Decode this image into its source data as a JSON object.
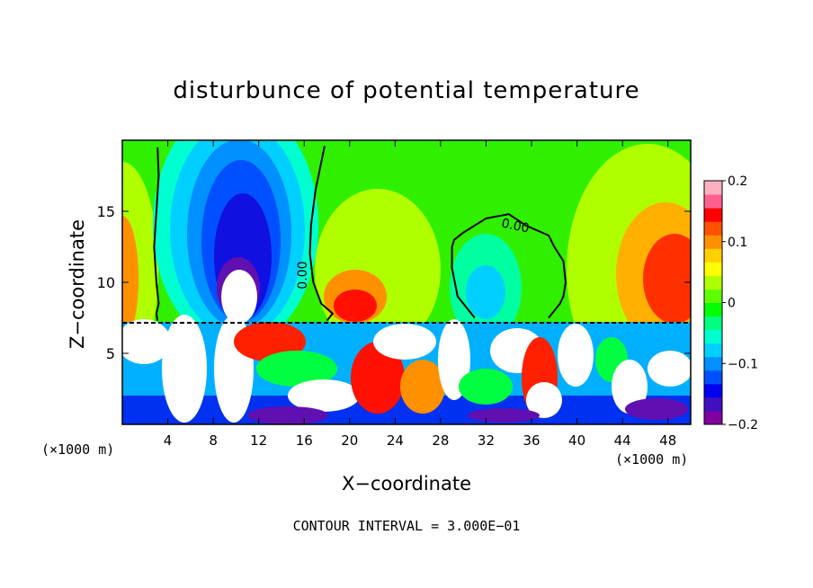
{
  "chart_data": {
    "type": "heatmap",
    "title": "disturbunce of potential temperature",
    "xlabel": "X−coordinate",
    "ylabel": "Z−coordinate",
    "x_unit_label_left": "(×1000 m)",
    "x_unit_label_right": "(×1000 m)",
    "footnote": "CONTOUR INTERVAL = 3.000E−01",
    "xlim": [
      0,
      50
    ],
    "ylim": [
      0,
      20
    ],
    "x_ticks": [
      4,
      8,
      12,
      16,
      20,
      24,
      28,
      32,
      36,
      40,
      44,
      48
    ],
    "y_ticks": [
      5,
      10,
      15
    ],
    "colorbar": {
      "min": -0.2,
      "max": 0.2,
      "tick_values": [
        0.2,
        0.1,
        0,
        -0.1,
        -0.2
      ],
      "tick_labels": [
        "0.2",
        "0.1",
        "0",
        "−0.1",
        "−0.2"
      ],
      "colors": [
        "#8000a0",
        "#4010c0",
        "#0000f0",
        "#0050ff",
        "#0090ff",
        "#00d0ff",
        "#00ffd0",
        "#00ff80",
        "#00ff00",
        "#60ff00",
        "#b0ff00",
        "#ffff00",
        "#ffd000",
        "#ff9000",
        "#ff5000",
        "#ff0000",
        "#ff6090",
        "#ffb0c0"
      ]
    },
    "contour_labels": [
      {
        "text": "0.00",
        "x": 34.5,
        "y": 13.7
      },
      {
        "text": "0.00",
        "x": 16.2,
        "y": 10.5
      }
    ],
    "series": [
      {
        "name": "0.00 contour",
        "x": [
          31.0,
          29.5,
          29.0,
          29.0,
          29.2,
          30.0,
          32.0,
          34.0,
          35.5,
          37.5,
          38.0,
          38.8,
          39.0,
          38.8,
          38.5,
          38.0,
          37.5
        ],
        "y": [
          7.5,
          9.0,
          11.0,
          12.5,
          13.0,
          13.5,
          14.5,
          14.8,
          14.0,
          13.3,
          12.5,
          11.5,
          10.0,
          9.0,
          8.5,
          8.0,
          7.5
        ]
      },
      {
        "name": "0.00 contour",
        "x": [
          3.1,
          3.2,
          3.0,
          2.8,
          3.0,
          3.2,
          3.0,
          3.1
        ],
        "y": [
          19.5,
          17.5,
          15.0,
          12.5,
          10.0,
          8.5,
          7.8,
          7.3
        ]
      },
      {
        "name": "0.00 contour",
        "x": [
          17.8,
          17.0,
          16.6,
          16.5,
          16.8,
          17.5,
          18.5,
          18.0
        ],
        "y": [
          19.6,
          16.5,
          14.0,
          12.0,
          10.0,
          8.5,
          7.8,
          7.3
        ]
      }
    ]
  }
}
